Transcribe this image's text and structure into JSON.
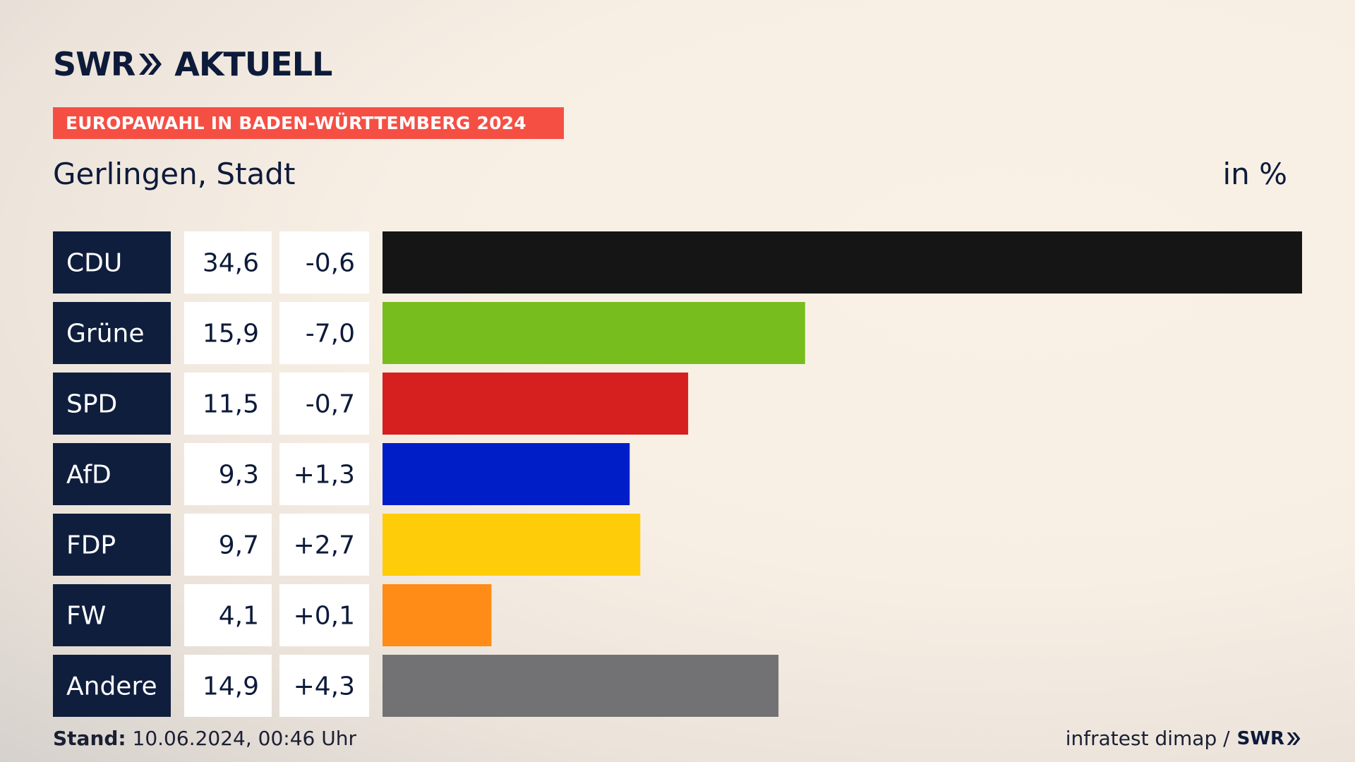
{
  "header": {
    "logo_swr": "SWR",
    "logo_aktuell": "AKTUELL",
    "banner": "EUROPAWAHL IN BADEN-WÜRTTEMBERG 2024",
    "place": "Gerlingen, Stadt",
    "unit": "in %"
  },
  "footer": {
    "stand_label": "Stand:",
    "stand_value": "10.06.2024, 00:46 Uhr",
    "source": "infratest dimap /",
    "source_logo": "SWR"
  },
  "colors": {
    "label_bg": "#0f1e3d",
    "banner": "#f54f44",
    "CDU": "#151515",
    "Grüne": "#78bd1e",
    "SPD": "#d61f1f",
    "AfD": "#001ec8",
    "FDP": "#ffcc0a",
    "FW": "#ff8c17",
    "Andere": "#727275"
  },
  "chart_data": {
    "type": "bar",
    "orientation": "horizontal",
    "categories": [
      "CDU",
      "Grüne",
      "SPD",
      "AfD",
      "FDP",
      "FW",
      "Andere"
    ],
    "values": [
      34.6,
      15.9,
      11.5,
      9.3,
      9.7,
      4.1,
      14.9
    ],
    "value_labels": [
      "34,6",
      "15,9",
      "11,5",
      "9,3",
      "9,7",
      "4,1",
      "14,9"
    ],
    "change_labels": [
      "-0,6",
      "-7,0",
      "-0,7",
      "+1,3",
      "+2,7",
      "+0,1",
      "+4,3"
    ],
    "changes": [
      -0.6,
      -7.0,
      -0.7,
      1.3,
      2.7,
      0.1,
      4.3
    ],
    "xlim": [
      0,
      34.6
    ],
    "ylabel": "",
    "xlabel": "",
    "grid": false,
    "legend": "none"
  }
}
